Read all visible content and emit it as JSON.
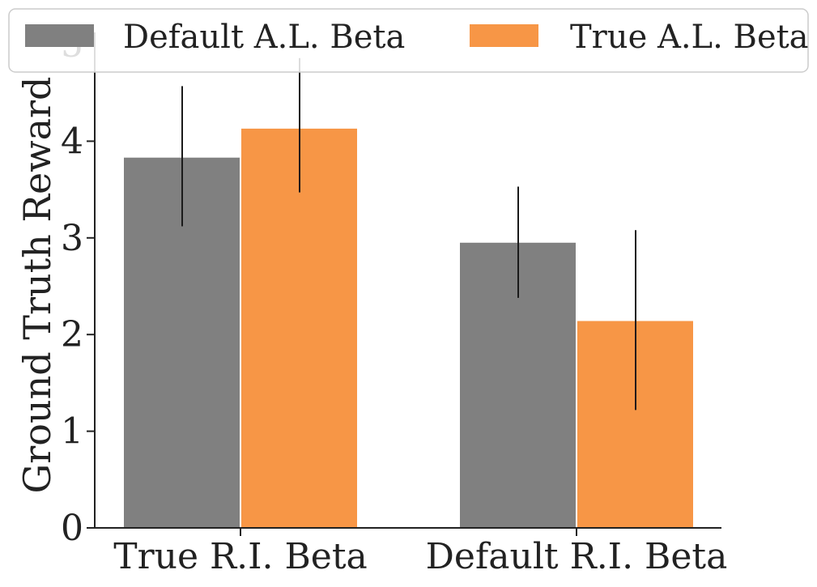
{
  "chart_data": {
    "type": "bar",
    "categories": [
      "True R.I. Beta",
      "Default R.I. Beta"
    ],
    "series": [
      {
        "name": "Default A.L. Beta",
        "color": "#808080",
        "values": [
          3.83,
          2.95
        ],
        "err_low": [
          3.12,
          2.38
        ],
        "err_high": [
          4.57,
          3.53
        ]
      },
      {
        "name": "True A.L. Beta",
        "color": "#f79646",
        "values": [
          4.13,
          2.14
        ],
        "err_low": [
          3.47,
          1.22
        ],
        "err_high": [
          4.86,
          3.08
        ]
      }
    ],
    "xlabel": "",
    "ylabel": "Ground Truth Reward",
    "ylim": [
      0,
      5
    ],
    "yticks": [
      "0",
      "1",
      "2",
      "3",
      "4",
      "5"
    ],
    "grid": false,
    "legend_position": "top"
  }
}
